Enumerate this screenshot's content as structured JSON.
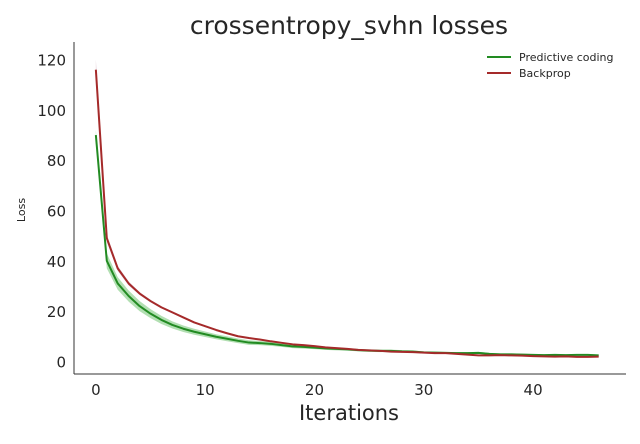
{
  "chart_data": {
    "type": "line",
    "title": "crossentropy_svhn losses",
    "xlabel": "Iterations",
    "ylabel": "Loss",
    "xlim": [
      -2,
      48.5
    ],
    "ylim": [
      -5,
      127
    ],
    "xticks": [
      0,
      10,
      20,
      30,
      40
    ],
    "yticks": [
      0,
      20,
      40,
      60,
      80,
      100,
      120
    ],
    "grid": false,
    "legend_position": "top-right",
    "series": [
      {
        "name": "Predictive coding",
        "color": "#228b22",
        "band_color": "#7fc97f",
        "x": [
          0,
          1,
          2,
          3,
          4,
          5,
          6,
          7,
          8,
          9,
          10,
          11,
          12,
          13,
          14,
          15,
          16,
          17,
          18,
          19,
          20,
          21,
          22,
          23,
          24,
          25,
          26,
          27,
          28,
          29,
          30,
          31,
          32,
          33,
          34,
          35,
          36,
          37,
          38,
          39,
          40,
          41,
          42,
          43,
          44,
          45,
          46
        ],
        "y": [
          90,
          40,
          31,
          26,
          22,
          19,
          16.5,
          14.5,
          13,
          11.8,
          10.8,
          9.8,
          9,
          8.2,
          7.5,
          7.3,
          7,
          6.5,
          6,
          5.8,
          5.5,
          5.2,
          5,
          4.8,
          4.5,
          4.3,
          4.2,
          4.2,
          4,
          3.9,
          3.6,
          3.5,
          3.4,
          3.3,
          3.3,
          3.4,
          3,
          2.8,
          2.8,
          2.7,
          2.6,
          2.5,
          2.6,
          2.5,
          2.6,
          2.6,
          2.4
        ],
        "spread": [
          2,
          3,
          2.5,
          2.2,
          2,
          1.8,
          1.6,
          1.4,
          1.3,
          1.2,
          1.1,
          1,
          1,
          0.9,
          0.9,
          0.8,
          0.8,
          0.7,
          0.7,
          0.7,
          0.6,
          0.6,
          0.6,
          0.5,
          0.5,
          0.5,
          0.5,
          0.5,
          0.5,
          0.5,
          0.4,
          0.4,
          0.4,
          0.4,
          0.4,
          0.4,
          0.4,
          0.4,
          0.4,
          0.4,
          0.3,
          0.3,
          0.3,
          0.3,
          0.3,
          0.3,
          0.3
        ]
      },
      {
        "name": "Backprop",
        "color": "#a52a2a",
        "band_color": "#c8a0b8",
        "x": [
          0,
          1,
          2,
          3,
          4,
          5,
          6,
          7,
          8,
          9,
          10,
          11,
          12,
          13,
          14,
          15,
          16,
          17,
          18,
          19,
          20,
          21,
          22,
          23,
          24,
          25,
          26,
          27,
          28,
          29,
          30,
          31,
          32,
          33,
          34,
          35,
          36,
          37,
          38,
          39,
          40,
          41,
          42,
          43,
          44,
          45,
          46
        ],
        "y": [
          116,
          49,
          37,
          31,
          27,
          24,
          21.5,
          19.5,
          17.5,
          15.5,
          14,
          12.5,
          11.2,
          10,
          9.3,
          8.7,
          8,
          7.4,
          6.8,
          6.5,
          6.1,
          5.6,
          5.3,
          5,
          4.6,
          4.4,
          4.2,
          3.9,
          3.8,
          3.7,
          3.5,
          3.3,
          3.3,
          3,
          2.7,
          2.4,
          2.4,
          2.5,
          2.4,
          2.3,
          2.1,
          2,
          1.9,
          2,
          1.8,
          1.8,
          1.9
        ],
        "spread": [
          4,
          1.5,
          1,
          0.8,
          0.6,
          0.5,
          0.4,
          0.4,
          0.3,
          0.3,
          0.3,
          0.3,
          0.2,
          0.2,
          0.2,
          0.2,
          0.2,
          0.2,
          0.2,
          0.2,
          0.2,
          0.2,
          0.2,
          0.2,
          0.2,
          0.2,
          0.2,
          0.2,
          0.2,
          0.2,
          0.2,
          0.2,
          0.2,
          0.2,
          0.2,
          0.2,
          0.2,
          0.2,
          0.2,
          0.2,
          0.2,
          0.2,
          0.2,
          0.2,
          0.2,
          0.2,
          0.2
        ]
      }
    ]
  }
}
